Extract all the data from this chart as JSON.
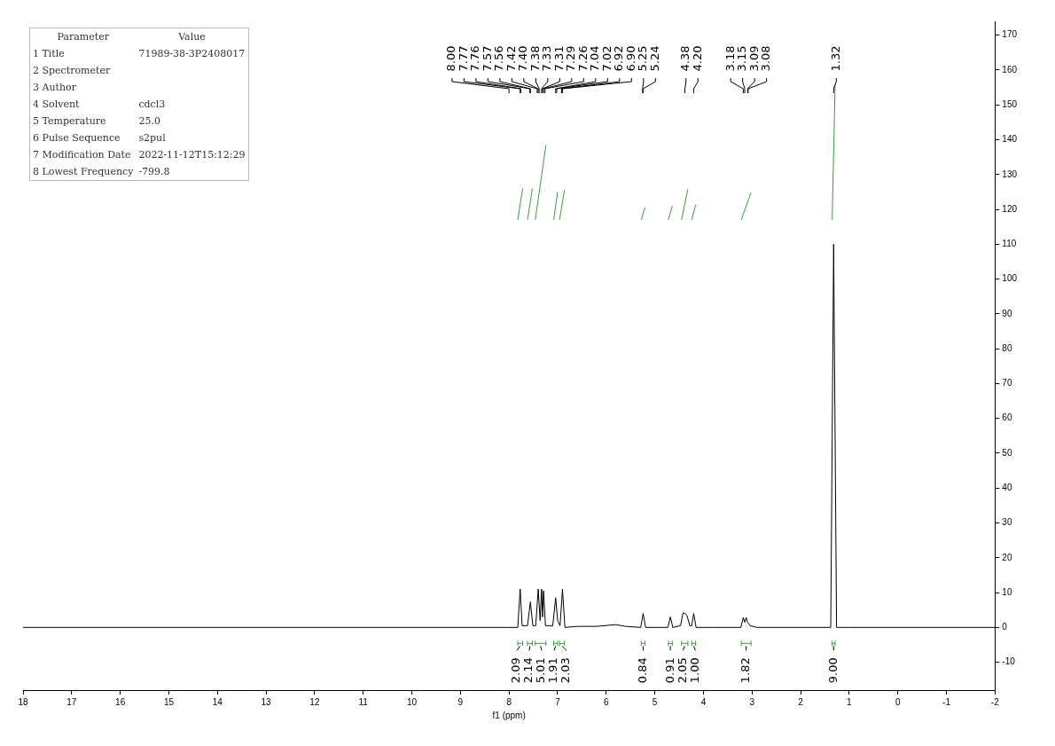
{
  "chart_data": {
    "type": "line",
    "xlabel": "f1 (ppm)",
    "xlim": [
      18,
      -2
    ],
    "xticks": [
      18,
      17,
      16,
      15,
      14,
      13,
      12,
      11,
      10,
      9,
      8,
      7,
      6,
      5,
      4,
      3,
      2,
      1,
      0,
      -1,
      -2
    ],
    "ylim": [
      -18,
      174
    ],
    "yticks": [
      -10,
      0,
      10,
      20,
      30,
      40,
      50,
      60,
      70,
      80,
      90,
      100,
      110,
      120,
      130,
      140,
      150,
      160,
      170
    ],
    "grid": false,
    "legend": false,
    "marker": "none",
    "line_style": "solid",
    "series": [
      {
        "color": "#000000",
        "x": [
          18,
          8.0,
          7.82,
          7.77,
          7.73,
          7.62,
          7.56,
          7.51,
          7.45,
          7.4,
          7.36,
          7.33,
          7.31,
          7.29,
          7.25,
          7.1,
          7.04,
          7.0,
          6.95,
          6.9,
          6.85,
          6.6,
          6.2,
          5.8,
          5.6,
          5.29,
          5.24,
          5.19,
          4.73,
          4.68,
          4.63,
          4.47,
          4.42,
          4.38,
          4.34,
          4.28,
          4.24,
          4.2,
          4.15,
          3.8,
          3.23,
          3.18,
          3.15,
          3.12,
          3.09,
          3.04,
          2.9,
          1.6,
          1.38,
          1.32,
          1.26,
          1.0,
          -2
        ],
        "values": [
          0,
          0,
          0,
          11,
          0.5,
          0.5,
          7.3,
          0.5,
          0.5,
          11,
          2,
          11,
          3,
          10.5,
          0.5,
          0.5,
          8.5,
          2,
          0.5,
          11,
          0,
          0.3,
          0.3,
          0.8,
          0.3,
          0,
          4,
          0,
          0,
          3,
          0,
          0.5,
          4.2,
          4,
          3.5,
          0.5,
          0.5,
          4,
          0,
          0,
          0,
          2.8,
          1.5,
          2.8,
          1.5,
          0.5,
          0,
          0,
          0,
          110,
          0,
          0,
          0
        ]
      },
      {
        "color": "#3a9a3a",
        "x": [
          7.82,
          7.72,
          null,
          7.62,
          7.52,
          null,
          7.46,
          7.24,
          null,
          7.08,
          7.0,
          null,
          6.96,
          6.86,
          null,
          5.28,
          5.2,
          null,
          4.72,
          4.64,
          null,
          4.45,
          4.32,
          null,
          4.24,
          4.16,
          null,
          3.22,
          3.02,
          null,
          1.35,
          1.29
        ],
        "values": [
          117,
          126,
          null,
          117,
          126,
          null,
          117,
          138.5,
          null,
          117,
          125,
          null,
          117,
          125.5,
          null,
          117,
          120.6,
          null,
          117,
          121,
          null,
          117,
          125.8,
          null,
          117,
          121.3,
          null,
          117,
          124.8,
          null,
          117,
          155.7
        ]
      }
    ],
    "annotations": [
      "Parameter\tValue",
      "1 Title\t71989-38-3P2408017",
      "2 Spectrometer",
      "3 Author",
      "4 Solvent\tcdcl3",
      "5 Temperature\t25.0",
      "6 Pulse Sequence\ts2pul",
      "7 Modification Date\t2022-11-12T15:12:29",
      "8 Lowest Frequency\t-799.8",
      {
        "text": "8.00",
        "x": 8.0
      },
      {
        "text": "7.77",
        "x": 7.77
      },
      {
        "text": "7.76",
        "x": 7.76
      },
      {
        "text": "7.57",
        "x": 7.57
      },
      {
        "text": "7.56",
        "x": 7.56
      },
      {
        "text": "7.42",
        "x": 7.42
      },
      {
        "text": "7.40",
        "x": 7.4
      },
      {
        "text": "7.38",
        "x": 7.38
      },
      {
        "text": "7.33",
        "x": 7.33
      },
      {
        "text": "7.31",
        "x": 7.31
      },
      {
        "text": "7.29",
        "x": 7.29
      },
      {
        "text": "7.26",
        "x": 7.26
      },
      {
        "text": "7.04",
        "x": 7.04
      },
      {
        "text": "7.02",
        "x": 7.02
      },
      {
        "text": "6.92",
        "x": 6.92
      },
      {
        "text": "6.90",
        "x": 6.9
      },
      {
        "text": "5.25",
        "x": 5.25
      },
      {
        "text": "5.24",
        "x": 5.24
      },
      {
        "text": "4.38",
        "x": 4.38
      },
      {
        "text": "4.20",
        "x": 4.2
      },
      {
        "text": "3.18",
        "x": 3.18
      },
      {
        "text": "3.15",
        "x": 3.15
      },
      {
        "text": "3.09",
        "x": 3.09
      },
      {
        "text": "3.08",
        "x": 3.08
      },
      {
        "text": "1.32",
        "x": 1.32
      },
      "2.09",
      "2.14",
      "5.01",
      "1.91",
      "2.03",
      "0.84",
      "0.91",
      "2.05",
      "1.00",
      "1.82",
      "9.00"
    ]
  }
}
